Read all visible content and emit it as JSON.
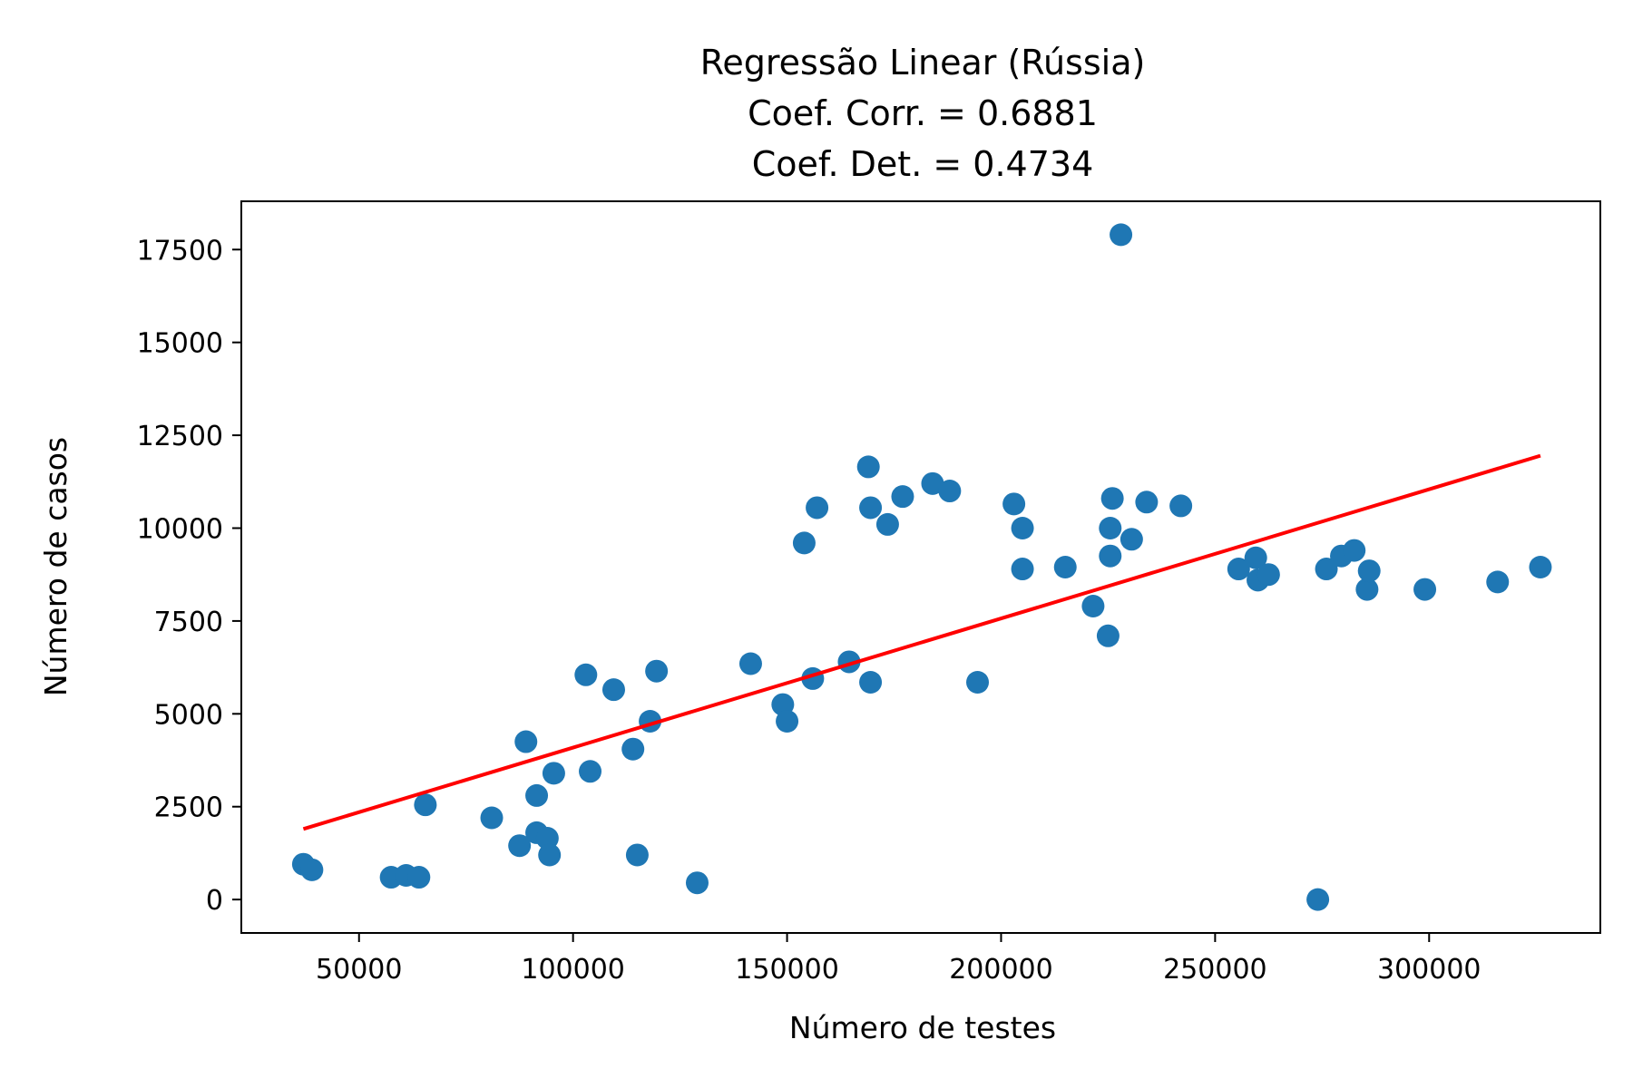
{
  "chart_data": {
    "type": "scatter",
    "title_lines": [
      "Regressão Linear (Rússia)",
      "Coef. Corr. = 0.6881",
      "Coef. Det. = 0.4734"
    ],
    "xlabel": "Número de testes",
    "ylabel": "Número de casos",
    "xlim": [
      22500,
      340000
    ],
    "ylim": [
      -900,
      18800
    ],
    "x_ticks": [
      50000,
      100000,
      150000,
      200000,
      250000,
      300000
    ],
    "x_tick_labels": [
      "50000",
      "100000",
      "150000",
      "200000",
      "250000",
      "300000"
    ],
    "y_ticks": [
      0,
      2500,
      5000,
      7500,
      10000,
      12500,
      15000,
      17500
    ],
    "y_tick_labels": [
      "0",
      "2500",
      "5000",
      "7500",
      "10000",
      "12500",
      "15000",
      "17500"
    ],
    "grid": false,
    "legend": "none",
    "series": [
      {
        "kind": "scatter",
        "color": "#1f77b4",
        "points": [
          [
            37000,
            950
          ],
          [
            39000,
            800
          ],
          [
            57500,
            600
          ],
          [
            61000,
            650
          ],
          [
            64000,
            600
          ],
          [
            65500,
            2550
          ],
          [
            81000,
            2200
          ],
          [
            87500,
            1450
          ],
          [
            89000,
            4250
          ],
          [
            91500,
            2800
          ],
          [
            91500,
            1800
          ],
          [
            94000,
            1650
          ],
          [
            94500,
            1200
          ],
          [
            95500,
            3400
          ],
          [
            103000,
            6050
          ],
          [
            104000,
            3450
          ],
          [
            109500,
            5650
          ],
          [
            114000,
            4050
          ],
          [
            115000,
            1200
          ],
          [
            118000,
            4800
          ],
          [
            119500,
            6150
          ],
          [
            129000,
            450
          ],
          [
            141500,
            6350
          ],
          [
            149000,
            5250
          ],
          [
            150000,
            4800
          ],
          [
            154000,
            9600
          ],
          [
            156000,
            5950
          ],
          [
            157000,
            10550
          ],
          [
            164500,
            6400
          ],
          [
            169000,
            11650
          ],
          [
            169500,
            10550
          ],
          [
            169500,
            5850
          ],
          [
            173500,
            10100
          ],
          [
            177000,
            10850
          ],
          [
            184000,
            11200
          ],
          [
            188000,
            11000
          ],
          [
            194500,
            5850
          ],
          [
            203000,
            10650
          ],
          [
            205000,
            10000
          ],
          [
            205000,
            8900
          ],
          [
            215000,
            8950
          ],
          [
            221500,
            7900
          ],
          [
            225000,
            7100
          ],
          [
            225500,
            9250
          ],
          [
            225500,
            10000
          ],
          [
            226000,
            10800
          ],
          [
            228000,
            17900
          ],
          [
            230500,
            9700
          ],
          [
            234000,
            10700
          ],
          [
            242000,
            10600
          ],
          [
            255500,
            8900
          ],
          [
            259500,
            9200
          ],
          [
            260000,
            8600
          ],
          [
            262500,
            8750
          ],
          [
            274000,
            0
          ],
          [
            276000,
            8900
          ],
          [
            279500,
            9250
          ],
          [
            282500,
            9400
          ],
          [
            285500,
            8350
          ],
          [
            286000,
            8850
          ],
          [
            299000,
            8350
          ],
          [
            316000,
            8550
          ],
          [
            326000,
            8950
          ]
        ]
      },
      {
        "kind": "line",
        "color": "#ff0000",
        "points": [
          [
            37000,
            1900
          ],
          [
            326000,
            11950
          ]
        ]
      }
    ]
  }
}
